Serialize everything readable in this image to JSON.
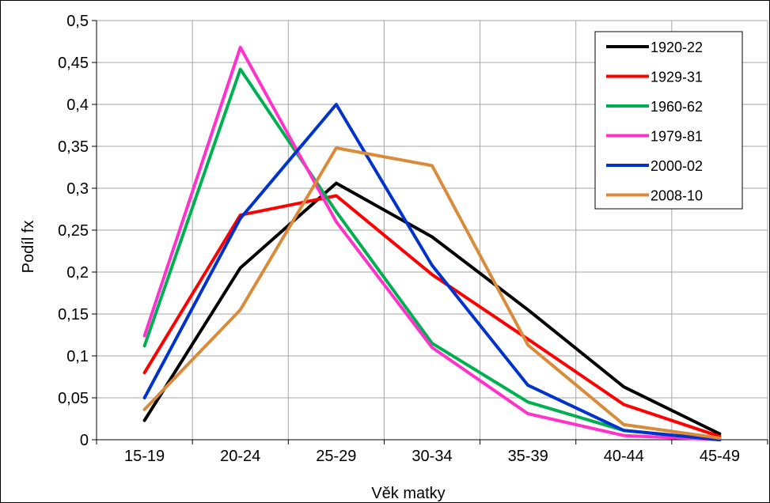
{
  "chart_data": {
    "type": "line",
    "title": "",
    "xlabel": "Věk matky",
    "ylabel": "Podíl fx",
    "categories": [
      "15-19",
      "20-24",
      "25-29",
      "30-34",
      "35-39",
      "40-44",
      "45-49"
    ],
    "yticks": [
      "0",
      "0,05",
      "0,1",
      "0,15",
      "0,2",
      "0,25",
      "0,3",
      "0,35",
      "0,4",
      "0,45",
      "0,5"
    ],
    "ylim": [
      0,
      0.5
    ],
    "grid": true,
    "legend_position": "top-right",
    "series": [
      {
        "name": "1920-22",
        "color": "#000000",
        "values": [
          0.023,
          0.205,
          0.306,
          0.242,
          0.155,
          0.063,
          0.007
        ]
      },
      {
        "name": "1929-31",
        "color": "#ff0000",
        "values": [
          0.08,
          0.268,
          0.291,
          0.197,
          0.12,
          0.042,
          0.004
        ]
      },
      {
        "name": "1960-62",
        "color": "#00b050",
        "values": [
          0.112,
          0.442,
          0.272,
          0.115,
          0.045,
          0.011,
          0.0
        ]
      },
      {
        "name": "1979-81",
        "color": "#ff33cc",
        "values": [
          0.124,
          0.468,
          0.26,
          0.11,
          0.031,
          0.005,
          0.0
        ]
      },
      {
        "name": "2000-02",
        "color": "#0033cc",
        "values": [
          0.05,
          0.264,
          0.4,
          0.208,
          0.065,
          0.011,
          0.0
        ]
      },
      {
        "name": "2008-10",
        "color": "#d98b3a",
        "values": [
          0.036,
          0.155,
          0.348,
          0.327,
          0.113,
          0.018,
          0.002
        ]
      }
    ]
  }
}
